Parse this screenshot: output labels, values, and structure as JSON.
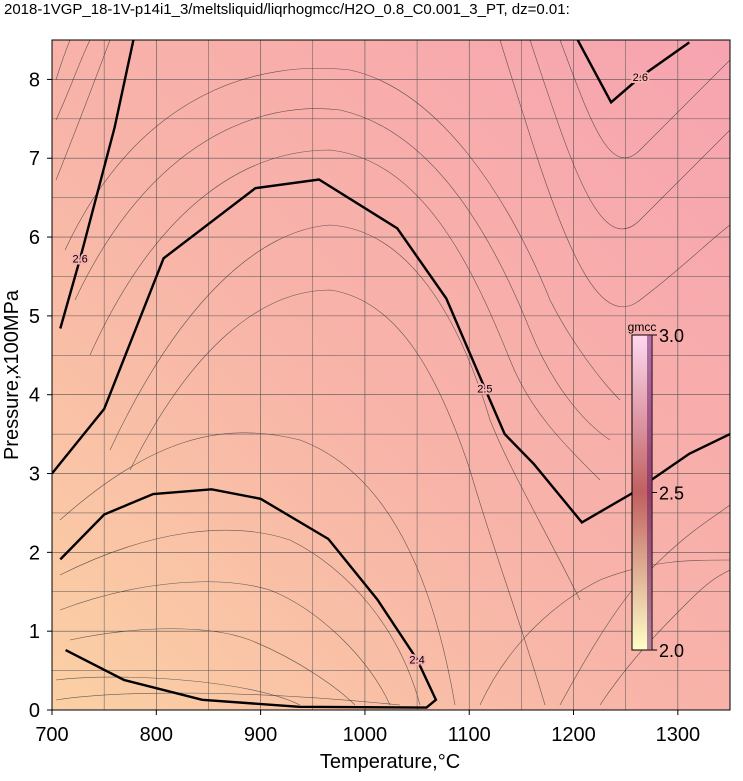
{
  "chart_data": {
    "type": "contour",
    "title": "2018-1VGP_18-1V-p14i1_3/meltsliquid/liqrhogmcc/H2O_0.8_C0.001_3_PT, dz=0.01:",
    "x_label": "Temperature,°C",
    "y_label": "Pressure,x100MPa",
    "xlim": [
      700,
      1350
    ],
    "ylim": [
      0,
      8.5
    ],
    "xticks": [
      700,
      800,
      900,
      1000,
      1100,
      1200,
      1300
    ],
    "yticks": [
      0,
      1,
      2,
      3,
      4,
      5,
      6,
      7,
      8
    ],
    "xminorticks": [
      750,
      850,
      950,
      1050,
      1150,
      1250
    ],
    "yminorticks": [
      0.5,
      1.5,
      2.5,
      3.5,
      4.5,
      5.5,
      6.5,
      7.5
    ],
    "grid": true,
    "contours": [
      {
        "level": 2.5,
        "x": [
          700,
          750,
          807,
          895,
          956,
          1031,
          1078,
          1115,
          1134,
          1162,
          1208,
          1255,
          1311,
          1350
        ],
        "y": [
          3.0,
          3.82,
          5.73,
          6.62,
          6.73,
          6.11,
          5.22,
          4.08,
          3.5,
          3.12,
          2.38,
          2.74,
          3.25,
          3.5
        ]
      },
      {
        "level": 2.4,
        "x": [
          708,
          750,
          797,
          853,
          900,
          965,
          1012,
          1050,
          1068,
          1059,
          937,
          844,
          769,
          713
        ],
        "y": [
          1.91,
          2.48,
          2.74,
          2.8,
          2.68,
          2.17,
          1.4,
          0.64,
          0.13,
          0.03,
          0.04,
          0.13,
          0.38,
          0.76
        ]
      },
      {
        "level": 2.6,
        "x": [
          1204,
          1236,
          1264,
          1311
        ],
        "y": [
          8.5,
          7.71,
          8.03,
          8.47
        ]
      },
      {
        "level": 2.6,
        "x": [
          778,
          760,
          727,
          708
        ],
        "y": [
          8.5,
          7.39,
          5.73,
          4.84
        ]
      }
    ],
    "colorbar": {
      "label": "gmcc",
      "lim": [
        2.0,
        3.0
      ],
      "ticks": [
        {
          "value": 2,
          "label": "2.0"
        },
        2.5,
        {
          "value": 3,
          "label": "3.0"
        }
      ],
      "colors": [
        "#ffffc8",
        "#c06060",
        "#ffd8f0"
      ]
    }
  }
}
